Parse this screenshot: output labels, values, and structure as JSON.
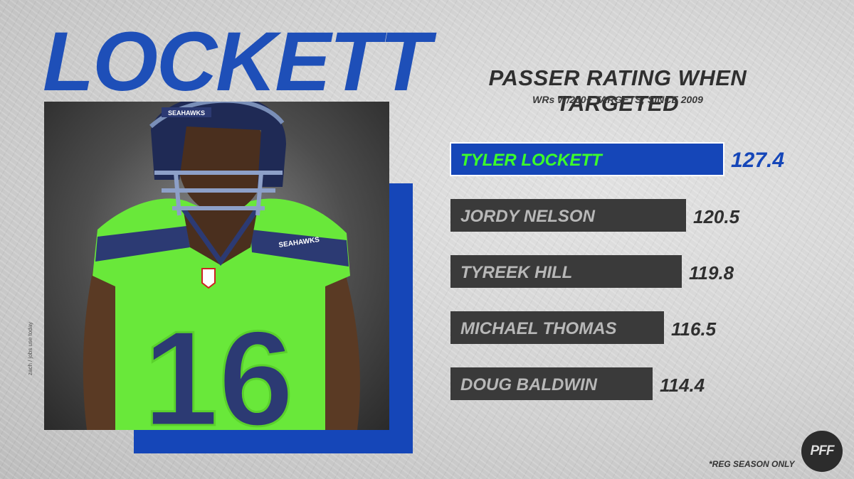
{
  "headline": "LOCKETT",
  "photo_credit": "zach / jobs use today",
  "jersey_number": "16",
  "helmet_text": "SEAHAWKS",
  "jersey_text": "SEAHAWKS",
  "footnote": "*REG SEASON ONLY",
  "logo_text": "PFF",
  "colors": {
    "accent_blue": "#1546b8",
    "highlight_green": "#3cff2a",
    "bar_dark": "#3a3a3a",
    "bar_text": "#b8b8b8"
  },
  "chart_data": {
    "type": "bar",
    "orientation": "horizontal",
    "title": "PASSER RATING WHEN TARGETED",
    "subtitle": "WRs W/200+ TARGETS; SINCE 2009",
    "categories": [
      "TYLER LOCKETT",
      "JORDY NELSON",
      "TYREEK HILL",
      "MICHAEL THOMAS",
      "DOUG BALDWIN"
    ],
    "values": [
      127.4,
      120.5,
      119.8,
      116.5,
      114.4
    ],
    "value_labels": [
      "127.4",
      "120.5",
      "119.8",
      "116.5",
      "114.4"
    ],
    "highlighted": "TYLER LOCKETT",
    "grid": false,
    "legend": "none"
  }
}
